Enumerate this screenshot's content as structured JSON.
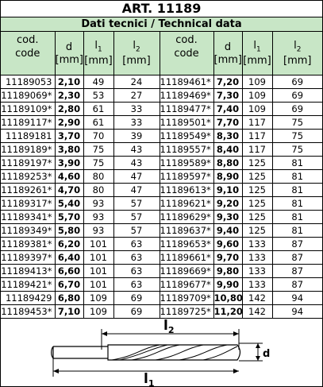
{
  "title": "ART. 11189",
  "subtitle": "Dati tecnici / Technical data",
  "headers": {
    "code_line1": "cod.",
    "code_line2": "code",
    "d": "d",
    "l1": "l",
    "l1_sub": "1",
    "l2": "l",
    "l2_sub": "2",
    "unit": "[mm]"
  },
  "left_rows": [
    {
      "code": "11189053",
      "d": "2,10",
      "l1": "49",
      "l2": "24"
    },
    {
      "code": "11189069*",
      "d": "2,30",
      "l1": "53",
      "l2": "27"
    },
    {
      "code": "11189109*",
      "d": "2,80",
      "l1": "61",
      "l2": "33"
    },
    {
      "code": "11189117*",
      "d": "2,90",
      "l1": "61",
      "l2": "33"
    },
    {
      "code": "11189181",
      "d": "3,70",
      "l1": "70",
      "l2": "39"
    },
    {
      "code": "11189189*",
      "d": "3,80",
      "l1": "75",
      "l2": "43"
    },
    {
      "code": "11189197*",
      "d": "3,90",
      "l1": "75",
      "l2": "43"
    },
    {
      "code": "11189253*",
      "d": "4,60",
      "l1": "80",
      "l2": "47"
    },
    {
      "code": "11189261*",
      "d": "4,70",
      "l1": "80",
      "l2": "47"
    },
    {
      "code": "11189317*",
      "d": "5,40",
      "l1": "93",
      "l2": "57"
    },
    {
      "code": "11189341*",
      "d": "5,70",
      "l1": "93",
      "l2": "57"
    },
    {
      "code": "11189349*",
      "d": "5,80",
      "l1": "93",
      "l2": "57"
    },
    {
      "code": "11189381*",
      "d": "6,20",
      "l1": "101",
      "l2": "63"
    },
    {
      "code": "11189397*",
      "d": "6,40",
      "l1": "101",
      "l2": "63"
    },
    {
      "code": "11189413*",
      "d": "6,60",
      "l1": "101",
      "l2": "63"
    },
    {
      "code": "11189421*",
      "d": "6,70",
      "l1": "101",
      "l2": "63"
    },
    {
      "code": "11189429",
      "d": "6,80",
      "l1": "109",
      "l2": "69"
    },
    {
      "code": "11189453*",
      "d": "7,10",
      "l1": "109",
      "l2": "69"
    }
  ],
  "right_rows": [
    {
      "code": "11189461*",
      "d": "7,20",
      "l1": "109",
      "l2": "69"
    },
    {
      "code": "11189469*",
      "d": "7,30",
      "l1": "109",
      "l2": "69"
    },
    {
      "code": "11189477*",
      "d": "7,40",
      "l1": "109",
      "l2": "69"
    },
    {
      "code": "11189501*",
      "d": "7,70",
      "l1": "117",
      "l2": "75"
    },
    {
      "code": "11189549*",
      "d": "8,30",
      "l1": "117",
      "l2": "75"
    },
    {
      "code": "11189557*",
      "d": "8,40",
      "l1": "117",
      "l2": "75"
    },
    {
      "code": "11189589*",
      "d": "8,80",
      "l1": "125",
      "l2": "81"
    },
    {
      "code": "11189597*",
      "d": "8,90",
      "l1": "125",
      "l2": "81"
    },
    {
      "code": "11189613*",
      "d": "9,10",
      "l1": "125",
      "l2": "81"
    },
    {
      "code": "11189621*",
      "d": "9,20",
      "l1": "125",
      "l2": "81"
    },
    {
      "code": "11189629*",
      "d": "9,30",
      "l1": "125",
      "l2": "81"
    },
    {
      "code": "11189637*",
      "d": "9,40",
      "l1": "125",
      "l2": "81"
    },
    {
      "code": "11189653*",
      "d": "9,60",
      "l1": "133",
      "l2": "87"
    },
    {
      "code": "11189661*",
      "d": "9,70",
      "l1": "133",
      "l2": "87"
    },
    {
      "code": "11189669*",
      "d": "9,80",
      "l1": "133",
      "l2": "87"
    },
    {
      "code": "11189677*",
      "d": "9,90",
      "l1": "133",
      "l2": "87"
    },
    {
      "code": "11189709*",
      "d": "10,80",
      "l1": "142",
      "l2": "94"
    },
    {
      "code": "11189725*",
      "d": "11,20",
      "l1": "142",
      "l2": "94"
    }
  ],
  "drawing": {
    "label_l2": "l",
    "label_l2_sub": "2",
    "label_l1": "l",
    "label_l1_sub": "1",
    "label_d": "d"
  },
  "colors": {
    "header_bg": "#c8e6c6",
    "border": "#000000"
  }
}
